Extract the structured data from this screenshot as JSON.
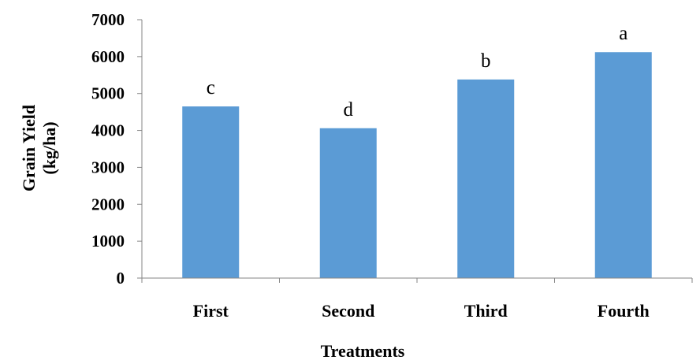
{
  "chart_data": {
    "type": "bar",
    "categories": [
      "First",
      "Second",
      "Third",
      "Fourth"
    ],
    "values": [
      4650,
      4060,
      5380,
      6120
    ],
    "data_labels": [
      "c",
      "d",
      "b",
      "a"
    ],
    "xlabel": "Treatments",
    "ylabel_lines": [
      "Grain Yield",
      "(kg/ha)"
    ],
    "ylim": [
      0,
      7000
    ],
    "yticks": [
      0,
      1000,
      2000,
      3000,
      4000,
      5000,
      6000,
      7000
    ],
    "grid": false,
    "legend": "none",
    "colors": {
      "bar": "#5b9bd5",
      "axis": "#868686",
      "text": "#000000"
    }
  }
}
